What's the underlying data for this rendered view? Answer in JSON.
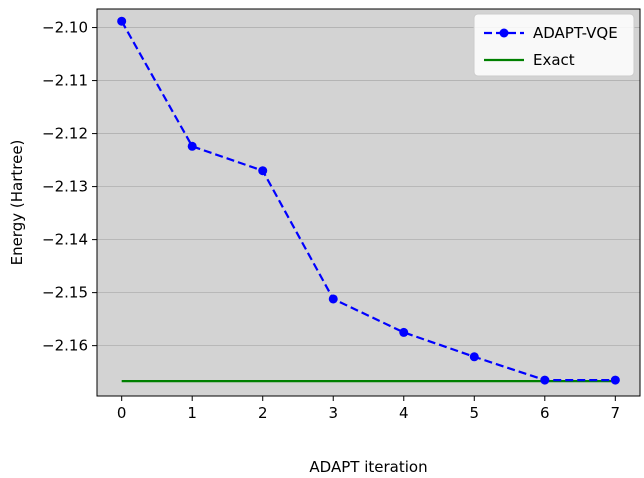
{
  "chart_data": {
    "type": "line",
    "xlabel": "ADAPT iteration",
    "ylabel": "Energy (Hartree)",
    "xlim": [
      -0.35,
      7.35
    ],
    "ylim": [
      -2.1695,
      -2.0965
    ],
    "xticks": [
      0,
      1,
      2,
      3,
      4,
      5,
      6,
      7
    ],
    "xtick_labels": [
      "0",
      "1",
      "2",
      "3",
      "4",
      "5",
      "6",
      "7"
    ],
    "yticks": [
      -2.1,
      -2.11,
      -2.12,
      -2.13,
      -2.14,
      -2.15,
      -2.16
    ],
    "ytick_labels": [
      "−2.10",
      "−2.11",
      "−2.12",
      "−2.13",
      "−2.14",
      "−2.15",
      "−2.16"
    ],
    "grid": "horizontal",
    "legend_position": "top-right",
    "background_color": "#d3d3d3",
    "series": [
      {
        "name": "ADAPT-VQE",
        "style": "dashed-with-circle-markers",
        "color": "#0000ff",
        "x": [
          0,
          1,
          2,
          3,
          4,
          5,
          6,
          7
        ],
        "y": [
          -2.0988,
          -2.1224,
          -2.127,
          -2.1512,
          -2.1575,
          -2.1621,
          -2.1665,
          -2.1665
        ]
      },
      {
        "name": "Exact",
        "style": "solid",
        "color": "#008000",
        "x": [
          0,
          7
        ],
        "y": [
          -2.1667,
          -2.1667
        ]
      }
    ]
  }
}
